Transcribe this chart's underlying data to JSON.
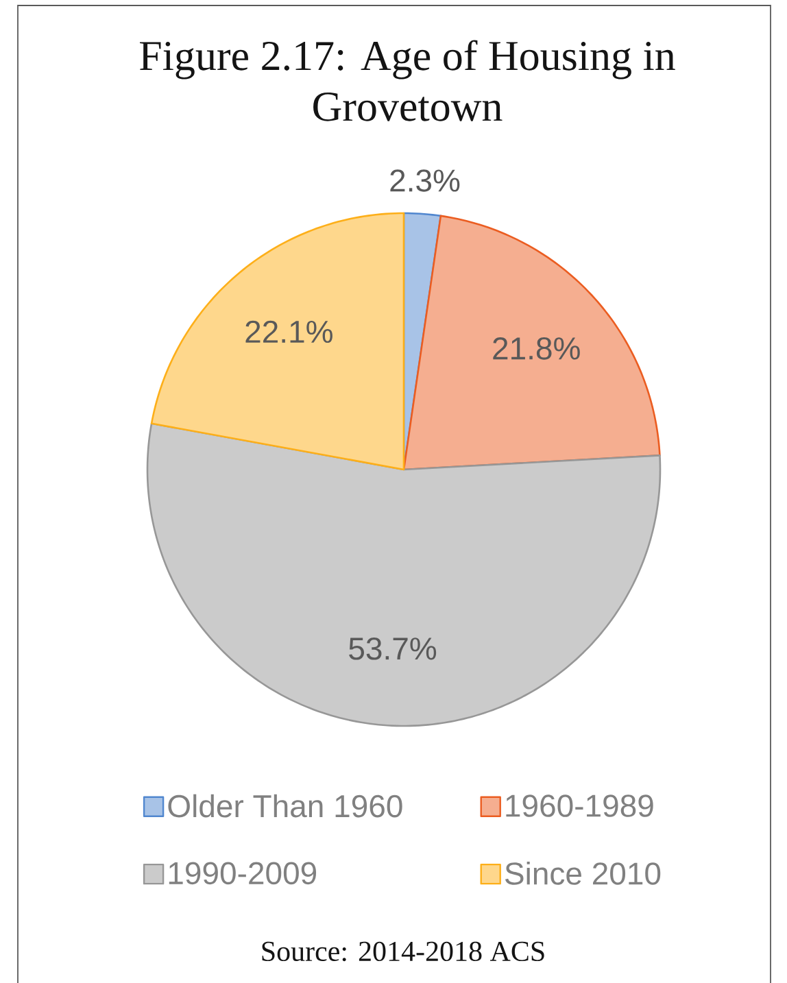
{
  "chart_data": {
    "type": "pie",
    "title": "Figure 2.17:  Age of Housing in Grovetown",
    "categories": [
      "Older Than 1960",
      "1960-1989",
      "1990-2009",
      "Since 2010"
    ],
    "values": [
      2.3,
      21.8,
      53.7,
      22.1
    ],
    "colors": [
      "#a8c3e7",
      "#f5ae90",
      "#cbcbcb",
      "#fed78c"
    ],
    "value_labels": [
      "2.3%",
      "21.8%",
      "53.7%",
      "22.1%"
    ],
    "legend": "bottom",
    "annotations": [
      "Source:  2014-2018 ACS"
    ]
  }
}
